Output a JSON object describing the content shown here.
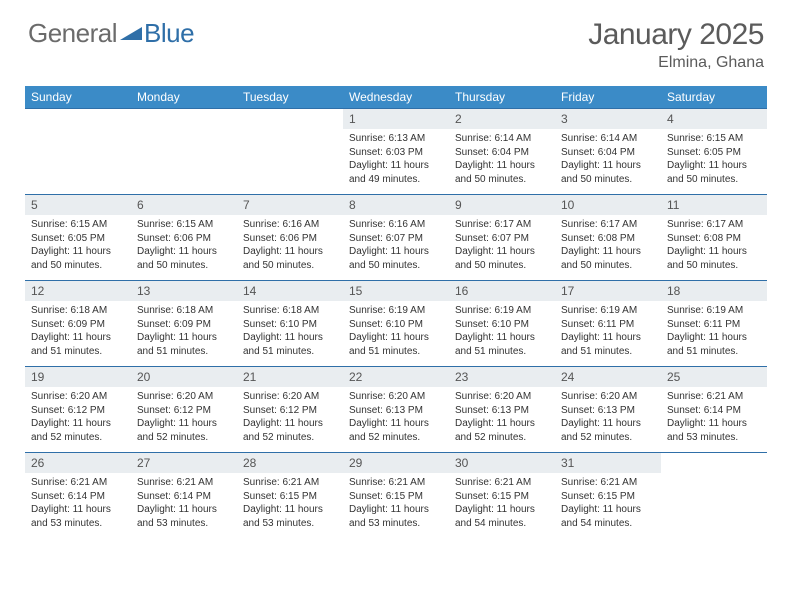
{
  "logo": {
    "part1": "General",
    "part2": "Blue"
  },
  "title": "January 2025",
  "location": "Elmina, Ghana",
  "colors": {
    "header_bg": "#3b8bc7",
    "header_text": "#ffffff",
    "border": "#2f6fa8",
    "daynum_bg": "#e9edf0",
    "text": "#333333",
    "title_text": "#5b5b5b",
    "logo_gray": "#6b6b6b",
    "logo_blue": "#2f6fa8"
  },
  "day_headers": [
    "Sunday",
    "Monday",
    "Tuesday",
    "Wednesday",
    "Thursday",
    "Friday",
    "Saturday"
  ],
  "weeks": [
    [
      null,
      null,
      null,
      {
        "n": "1",
        "sr": "6:13 AM",
        "ss": "6:03 PM",
        "dl": "11 hours and 49 minutes."
      },
      {
        "n": "2",
        "sr": "6:14 AM",
        "ss": "6:04 PM",
        "dl": "11 hours and 50 minutes."
      },
      {
        "n": "3",
        "sr": "6:14 AM",
        "ss": "6:04 PM",
        "dl": "11 hours and 50 minutes."
      },
      {
        "n": "4",
        "sr": "6:15 AM",
        "ss": "6:05 PM",
        "dl": "11 hours and 50 minutes."
      }
    ],
    [
      {
        "n": "5",
        "sr": "6:15 AM",
        "ss": "6:05 PM",
        "dl": "11 hours and 50 minutes."
      },
      {
        "n": "6",
        "sr": "6:15 AM",
        "ss": "6:06 PM",
        "dl": "11 hours and 50 minutes."
      },
      {
        "n": "7",
        "sr": "6:16 AM",
        "ss": "6:06 PM",
        "dl": "11 hours and 50 minutes."
      },
      {
        "n": "8",
        "sr": "6:16 AM",
        "ss": "6:07 PM",
        "dl": "11 hours and 50 minutes."
      },
      {
        "n": "9",
        "sr": "6:17 AM",
        "ss": "6:07 PM",
        "dl": "11 hours and 50 minutes."
      },
      {
        "n": "10",
        "sr": "6:17 AM",
        "ss": "6:08 PM",
        "dl": "11 hours and 50 minutes."
      },
      {
        "n": "11",
        "sr": "6:17 AM",
        "ss": "6:08 PM",
        "dl": "11 hours and 50 minutes."
      }
    ],
    [
      {
        "n": "12",
        "sr": "6:18 AM",
        "ss": "6:09 PM",
        "dl": "11 hours and 51 minutes."
      },
      {
        "n": "13",
        "sr": "6:18 AM",
        "ss": "6:09 PM",
        "dl": "11 hours and 51 minutes."
      },
      {
        "n": "14",
        "sr": "6:18 AM",
        "ss": "6:10 PM",
        "dl": "11 hours and 51 minutes."
      },
      {
        "n": "15",
        "sr": "6:19 AM",
        "ss": "6:10 PM",
        "dl": "11 hours and 51 minutes."
      },
      {
        "n": "16",
        "sr": "6:19 AM",
        "ss": "6:10 PM",
        "dl": "11 hours and 51 minutes."
      },
      {
        "n": "17",
        "sr": "6:19 AM",
        "ss": "6:11 PM",
        "dl": "11 hours and 51 minutes."
      },
      {
        "n": "18",
        "sr": "6:19 AM",
        "ss": "6:11 PM",
        "dl": "11 hours and 51 minutes."
      }
    ],
    [
      {
        "n": "19",
        "sr": "6:20 AM",
        "ss": "6:12 PM",
        "dl": "11 hours and 52 minutes."
      },
      {
        "n": "20",
        "sr": "6:20 AM",
        "ss": "6:12 PM",
        "dl": "11 hours and 52 minutes."
      },
      {
        "n": "21",
        "sr": "6:20 AM",
        "ss": "6:12 PM",
        "dl": "11 hours and 52 minutes."
      },
      {
        "n": "22",
        "sr": "6:20 AM",
        "ss": "6:13 PM",
        "dl": "11 hours and 52 minutes."
      },
      {
        "n": "23",
        "sr": "6:20 AM",
        "ss": "6:13 PM",
        "dl": "11 hours and 52 minutes."
      },
      {
        "n": "24",
        "sr": "6:20 AM",
        "ss": "6:13 PM",
        "dl": "11 hours and 52 minutes."
      },
      {
        "n": "25",
        "sr": "6:21 AM",
        "ss": "6:14 PM",
        "dl": "11 hours and 53 minutes."
      }
    ],
    [
      {
        "n": "26",
        "sr": "6:21 AM",
        "ss": "6:14 PM",
        "dl": "11 hours and 53 minutes."
      },
      {
        "n": "27",
        "sr": "6:21 AM",
        "ss": "6:14 PM",
        "dl": "11 hours and 53 minutes."
      },
      {
        "n": "28",
        "sr": "6:21 AM",
        "ss": "6:15 PM",
        "dl": "11 hours and 53 minutes."
      },
      {
        "n": "29",
        "sr": "6:21 AM",
        "ss": "6:15 PM",
        "dl": "11 hours and 53 minutes."
      },
      {
        "n": "30",
        "sr": "6:21 AM",
        "ss": "6:15 PM",
        "dl": "11 hours and 54 minutes."
      },
      {
        "n": "31",
        "sr": "6:21 AM",
        "ss": "6:15 PM",
        "dl": "11 hours and 54 minutes."
      },
      null
    ]
  ],
  "labels": {
    "sunrise": "Sunrise:",
    "sunset": "Sunset:",
    "daylight": "Daylight:"
  }
}
